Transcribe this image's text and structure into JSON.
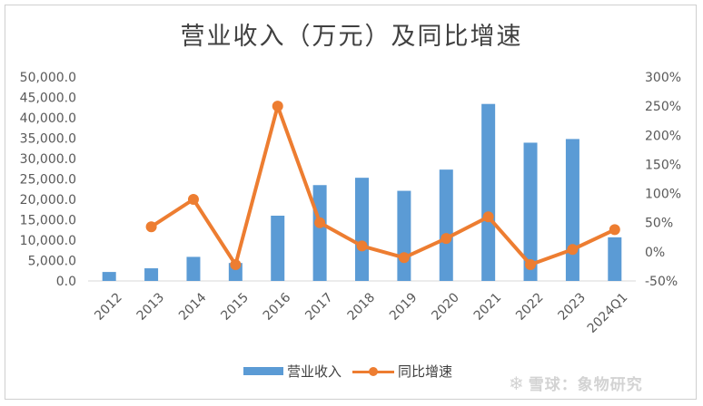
{
  "chart_data": {
    "type": "bar",
    "title": "营业收入（万元）及同比增速",
    "categories": [
      "2012",
      "2013",
      "2014",
      "2015",
      "2016",
      "2017",
      "2018",
      "2019",
      "2020",
      "2021",
      "2022",
      "2023",
      "2024Q1"
    ],
    "series": [
      {
        "name": "营业收入",
        "kind": "bar",
        "axis": "left",
        "values": [
          2200,
          3100,
          5900,
          4400,
          16000,
          23500,
          25300,
          22100,
          27300,
          43400,
          33900,
          34800,
          10700
        ]
      },
      {
        "name": "同比增速",
        "kind": "line",
        "axis": "right",
        "values": [
          null,
          0.43,
          0.9,
          -0.22,
          2.5,
          0.5,
          0.1,
          -0.1,
          0.23,
          0.6,
          -0.22,
          0.04,
          0.38
        ]
      }
    ],
    "y_left": {
      "min": 0,
      "max": 50000,
      "step": 5000,
      "ticks": [
        "0.0",
        "5,000.0",
        "10,000.0",
        "15,000.0",
        "20,000.0",
        "25,000.0",
        "30,000.0",
        "35,000.0",
        "40,000.0",
        "45,000.0",
        "50,000.0"
      ]
    },
    "y_right": {
      "min": -0.5,
      "max": 3.0,
      "step": 0.5,
      "ticks": [
        "-50%",
        "0%",
        "50%",
        "100%",
        "150%",
        "200%",
        "250%",
        "300%"
      ]
    },
    "colors": {
      "bar": "#5B9BD5",
      "line": "#ED7D31",
      "axis": "#d9d9d9",
      "text": "#595959"
    }
  },
  "watermark": {
    "icon": "snowball-icon",
    "text": "雪球：象物研究"
  }
}
